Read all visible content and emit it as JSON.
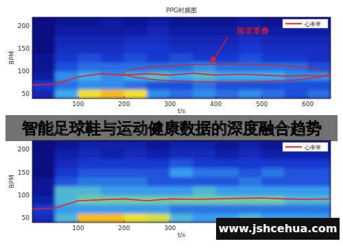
{
  "chart_data": [
    {
      "type": "heatmap_line",
      "title": "PPG时频图",
      "xlabel": "t/s",
      "ylabel": "BPM",
      "xlim": [
        0,
        650
      ],
      "ylim": [
        40,
        220
      ],
      "xticks": [
        100,
        200,
        300,
        400,
        500,
        600
      ],
      "yticks": [
        50,
        100,
        150,
        200
      ],
      "legend": "upper right",
      "x": [
        0,
        50,
        100,
        150,
        200,
        250,
        300,
        350,
        400,
        450,
        500,
        550,
        600,
        650
      ],
      "series": [
        {
          "name": "心率带",
          "color": "#e8201f",
          "values": [
            70,
            72,
            88,
            95,
            92,
            95,
            92,
            96,
            92,
            94,
            92,
            90,
            91,
            90
          ]
        }
      ],
      "annotations": [
        {
          "text": "频谱重叠",
          "x": 480,
          "y": 190,
          "color": "#e02020"
        }
      ],
      "heatmap": {
        "x_edges": [
          0,
          50,
          100,
          150,
          200,
          250,
          300,
          350,
          400,
          450,
          500,
          550,
          600,
          650
        ],
        "y_edges": [
          40,
          60,
          80,
          100,
          120,
          140,
          160,
          180,
          200,
          220
        ],
        "cells": [
          [
            0.25,
            0.55,
            0.9,
            0.95,
            0.9,
            0.5,
            0.45,
            0.5,
            0.45,
            0.5,
            0.45,
            0.4,
            0.45
          ],
          [
            0.35,
            0.45,
            0.5,
            0.5,
            0.45,
            0.4,
            0.4,
            0.45,
            0.4,
            0.4,
            0.4,
            0.4,
            0.4
          ],
          [
            0.2,
            0.5,
            0.55,
            0.5,
            0.55,
            0.6,
            0.55,
            0.6,
            0.55,
            0.55,
            0.55,
            0.5,
            0.5
          ],
          [
            0.15,
            0.4,
            0.45,
            0.45,
            0.45,
            0.45,
            0.45,
            0.5,
            0.45,
            0.45,
            0.45,
            0.45,
            0.4
          ],
          [
            0.15,
            0.35,
            0.4,
            0.35,
            0.4,
            0.35,
            0.4,
            0.35,
            0.35,
            0.4,
            0.35,
            0.35,
            0.3
          ],
          [
            0.1,
            0.3,
            0.3,
            0.3,
            0.35,
            0.35,
            0.3,
            0.3,
            0.3,
            0.35,
            0.3,
            0.3,
            0.3
          ],
          [
            0.1,
            0.25,
            0.25,
            0.25,
            0.3,
            0.3,
            0.25,
            0.25,
            0.25,
            0.3,
            0.25,
            0.25,
            0.25
          ],
          [
            0.1,
            0.2,
            0.2,
            0.2,
            0.2,
            0.25,
            0.2,
            0.2,
            0.2,
            0.2,
            0.2,
            0.2,
            0.2
          ],
          [
            0.1,
            0.15,
            0.15,
            0.2,
            0.15,
            0.2,
            0.15,
            0.15,
            0.15,
            0.2,
            0.15,
            0.15,
            0.15
          ]
        ]
      }
    },
    {
      "type": "heatmap_line",
      "xlabel": "t/s",
      "ylabel": "BPM",
      "xlim": [
        0,
        650
      ],
      "ylim": [
        40,
        220
      ],
      "xticks": [
        100,
        200,
        300
      ],
      "yticks": [
        50,
        100,
        150,
        200
      ],
      "legend": "upper right",
      "x": [
        0,
        50,
        100,
        150,
        200,
        250,
        300,
        350,
        400,
        450,
        500,
        550,
        600,
        650
      ],
      "series": [
        {
          "name": "心率带",
          "color": "#e8201f",
          "values": [
            70,
            72,
            88,
            90,
            92,
            88,
            92,
            91,
            92,
            93,
            94,
            92,
            91,
            92
          ]
        }
      ],
      "heatmap": {
        "x_edges": [
          0,
          50,
          100,
          150,
          200,
          250,
          300,
          350,
          400,
          450,
          500,
          550,
          600,
          650
        ],
        "y_edges": [
          40,
          60,
          80,
          100,
          120,
          140,
          160,
          180,
          200,
          220
        ],
        "cells": [
          [
            0.25,
            0.5,
            0.8,
            0.8,
            0.75,
            0.7,
            0.5,
            0.45,
            0.45,
            0.5,
            0.45,
            0.45,
            0.45
          ],
          [
            0.3,
            0.45,
            0.45,
            0.45,
            0.45,
            0.45,
            0.4,
            0.4,
            0.4,
            0.4,
            0.4,
            0.4,
            0.4
          ],
          [
            0.2,
            0.5,
            0.55,
            0.55,
            0.55,
            0.55,
            0.55,
            0.55,
            0.55,
            0.55,
            0.55,
            0.5,
            0.5
          ],
          [
            0.15,
            0.5,
            0.5,
            0.45,
            0.45,
            0.45,
            0.45,
            0.5,
            0.45,
            0.45,
            0.45,
            0.45,
            0.45
          ],
          [
            0.15,
            0.35,
            0.4,
            0.4,
            0.4,
            0.35,
            0.35,
            0.35,
            0.35,
            0.4,
            0.35,
            0.35,
            0.35
          ],
          [
            0.1,
            0.3,
            0.35,
            0.35,
            0.35,
            0.35,
            0.45,
            0.4,
            0.4,
            0.35,
            0.4,
            0.35,
            0.35
          ],
          [
            0.1,
            0.25,
            0.3,
            0.3,
            0.3,
            0.3,
            0.35,
            0.3,
            0.3,
            0.3,
            0.3,
            0.3,
            0.3
          ],
          [
            0.1,
            0.2,
            0.25,
            0.2,
            0.25,
            0.2,
            0.25,
            0.25,
            0.2,
            0.25,
            0.2,
            0.2,
            0.2
          ],
          [
            0.1,
            0.15,
            0.2,
            0.2,
            0.2,
            0.15,
            0.2,
            0.2,
            0.15,
            0.2,
            0.15,
            0.15,
            0.15
          ]
        ]
      }
    }
  ],
  "overlay": {
    "title": "智能足球鞋与运动健康数据的深度融合趋势",
    "watermark": "www.jshcehua.com"
  }
}
